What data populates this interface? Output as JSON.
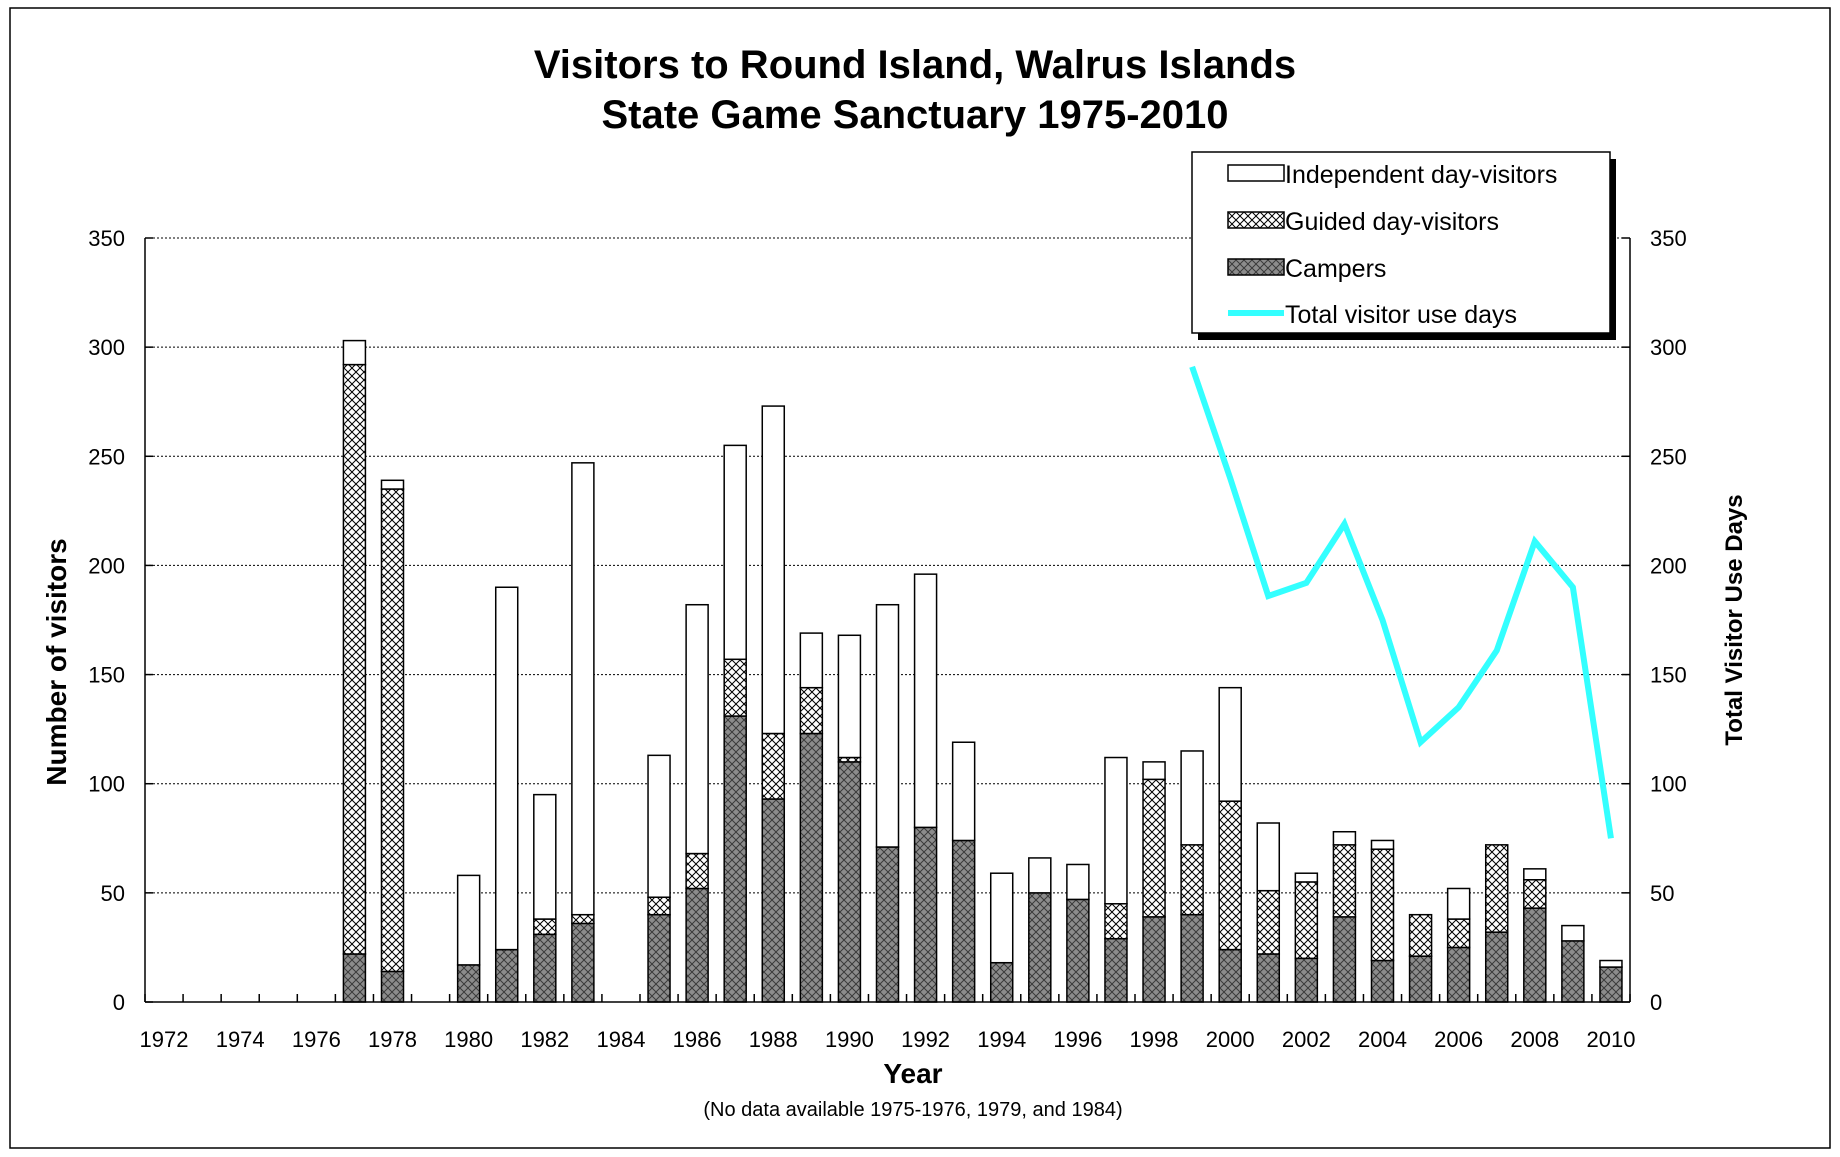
{
  "chart_data": {
    "type": "bar",
    "stacked": true,
    "title": [
      "Visitors to Round Island, Walrus Islands",
      "State Game Sanctuary 1975-2010"
    ],
    "xlabel": "Year",
    "ylabel": "Number of visitors",
    "y2label": "Total Visitor Use Days",
    "note": "(No data available 1975-1976, 1979, and 1984)",
    "ylim": [
      0,
      350
    ],
    "y2lim": [
      0,
      350
    ],
    "yticks": [
      0,
      50,
      100,
      150,
      200,
      250,
      300,
      350
    ],
    "grid": true,
    "x_range": [
      1972,
      2010
    ],
    "x_tick_labels": [
      "1972",
      "1974",
      "1976",
      "1978",
      "1980",
      "1982",
      "1984",
      "1986",
      "1988",
      "1990",
      "1992",
      "1994",
      "1996",
      "1998",
      "2000",
      "2002",
      "2004",
      "2006",
      "2008",
      "2010"
    ],
    "legend_position": "top-right",
    "series": [
      {
        "name": "Campers",
        "pattern": "dark-hatch",
        "points": [
          [
            1977,
            22
          ],
          [
            1978,
            14
          ],
          [
            1980,
            17
          ],
          [
            1981,
            24
          ],
          [
            1982,
            31
          ],
          [
            1983,
            36
          ],
          [
            1985,
            40
          ],
          [
            1986,
            52
          ],
          [
            1987,
            131
          ],
          [
            1988,
            93
          ],
          [
            1989,
            123
          ],
          [
            1990,
            110
          ],
          [
            1991,
            71
          ],
          [
            1992,
            80
          ],
          [
            1993,
            74
          ],
          [
            1994,
            18
          ],
          [
            1995,
            50
          ],
          [
            1996,
            47
          ],
          [
            1997,
            29
          ],
          [
            1998,
            39
          ],
          [
            1999,
            40
          ],
          [
            2000,
            24
          ],
          [
            2001,
            22
          ],
          [
            2002,
            20
          ],
          [
            2003,
            39
          ],
          [
            2004,
            19
          ],
          [
            2005,
            21
          ],
          [
            2006,
            25
          ],
          [
            2007,
            32
          ],
          [
            2008,
            43
          ],
          [
            2009,
            28
          ],
          [
            2010,
            16
          ]
        ]
      },
      {
        "name": "Guided day-visitors",
        "pattern": "light-hatch",
        "points": [
          [
            1977,
            270
          ],
          [
            1978,
            221
          ],
          [
            1980,
            0
          ],
          [
            1981,
            0
          ],
          [
            1982,
            7
          ],
          [
            1983,
            4
          ],
          [
            1985,
            8
          ],
          [
            1986,
            16
          ],
          [
            1987,
            26
          ],
          [
            1988,
            30
          ],
          [
            1989,
            21
          ],
          [
            1990,
            2
          ],
          [
            1991,
            0
          ],
          [
            1992,
            0
          ],
          [
            1993,
            0
          ],
          [
            1994,
            0
          ],
          [
            1995,
            0
          ],
          [
            1996,
            0
          ],
          [
            1997,
            16
          ],
          [
            1998,
            63
          ],
          [
            1999,
            32
          ],
          [
            2000,
            68
          ],
          [
            2001,
            29
          ],
          [
            2002,
            35
          ],
          [
            2003,
            33
          ],
          [
            2004,
            51
          ],
          [
            2005,
            19
          ],
          [
            2006,
            13
          ],
          [
            2007,
            40
          ],
          [
            2008,
            13
          ],
          [
            2009,
            0
          ],
          [
            2010,
            0
          ]
        ]
      },
      {
        "name": "Independent day-visitors",
        "pattern": "white",
        "points": [
          [
            1977,
            11
          ],
          [
            1978,
            4
          ],
          [
            1980,
            41
          ],
          [
            1981,
            166
          ],
          [
            1982,
            57
          ],
          [
            1983,
            207
          ],
          [
            1985,
            65
          ],
          [
            1986,
            114
          ],
          [
            1987,
            98
          ],
          [
            1988,
            150
          ],
          [
            1989,
            25
          ],
          [
            1990,
            56
          ],
          [
            1991,
            111
          ],
          [
            1992,
            116
          ],
          [
            1993,
            45
          ],
          [
            1994,
            41
          ],
          [
            1995,
            16
          ],
          [
            1996,
            16
          ],
          [
            1997,
            67
          ],
          [
            1998,
            8
          ],
          [
            1999,
            43
          ],
          [
            2000,
            52
          ],
          [
            2001,
            31
          ],
          [
            2002,
            4
          ],
          [
            2003,
            6
          ],
          [
            2004,
            4
          ],
          [
            2005,
            0
          ],
          [
            2006,
            14
          ],
          [
            2007,
            0
          ],
          [
            2008,
            5
          ],
          [
            2009,
            7
          ],
          [
            2010,
            3
          ]
        ]
      },
      {
        "name": "Total visitor use days",
        "type": "line",
        "axis": "right",
        "color": "#33ffff",
        "points": [
          [
            1999,
            291
          ],
          [
            2000,
            240
          ],
          [
            2001,
            186
          ],
          [
            2002,
            192
          ],
          [
            2003,
            219
          ],
          [
            2004,
            175
          ],
          [
            2005,
            119
          ],
          [
            2006,
            135
          ],
          [
            2007,
            161
          ],
          [
            2008,
            211
          ],
          [
            2009,
            190
          ],
          [
            2010,
            75
          ]
        ]
      }
    ]
  }
}
